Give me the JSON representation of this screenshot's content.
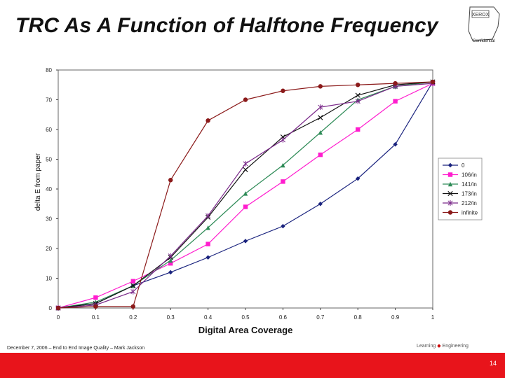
{
  "slide": {
    "title": "TRC As A Function of Halftone Frequency",
    "logo_label": "Confidential",
    "logo_mark": "XEROX",
    "footer_text": "December 7, 2006 – End to End Image Quality – Mark Jackson",
    "footer_logo_left": "Learning",
    "footer_logo_right": "Engineering",
    "page_number": "14",
    "accent_color": "#e8141b"
  },
  "chart_data": {
    "type": "line",
    "title": "",
    "xlabel": "Digital Area Coverage",
    "ylabel": "delta E from paper",
    "xlim": [
      0,
      1
    ],
    "ylim": [
      0,
      80
    ],
    "xticks": [
      "0",
      "0.1",
      "0.2",
      "0.3",
      "0.4",
      "0.5",
      "0.6",
      "0.7",
      "0.8",
      "0.9",
      "1"
    ],
    "yticks": [
      "0",
      "10",
      "20",
      "30",
      "40",
      "50",
      "60",
      "70",
      "80"
    ],
    "legend_position": "right",
    "series": [
      {
        "name": "0",
        "color": "#1a237e",
        "marker": "diamond",
        "x": [
          0,
          0.1,
          0.2,
          0.3,
          0.4,
          0.5,
          0.6,
          0.7,
          0.8,
          0.9,
          1
        ],
        "y": [
          0,
          1.5,
          7.5,
          12,
          17,
          22.5,
          27.5,
          35,
          43.5,
          55,
          76
        ]
      },
      {
        "name": "106/in",
        "color": "#ff1dce",
        "marker": "square",
        "x": [
          0,
          0.1,
          0.2,
          0.3,
          0.4,
          0.5,
          0.6,
          0.7,
          0.8,
          0.9,
          1
        ],
        "y": [
          0,
          3.5,
          9,
          15,
          21.5,
          34,
          42.5,
          51.5,
          60,
          69.5,
          75.5
        ]
      },
      {
        "name": "141/in",
        "color": "#2e8b57",
        "marker": "triangle",
        "x": [
          0,
          0.1,
          0.2,
          0.3,
          0.4,
          0.5,
          0.6,
          0.7,
          0.8,
          0.9,
          1
        ],
        "y": [
          0,
          2,
          7.5,
          16,
          27,
          38.5,
          48,
          59,
          70,
          74.5,
          76
        ]
      },
      {
        "name": "173/in",
        "color": "#111111",
        "marker": "x",
        "x": [
          0,
          0.1,
          0.2,
          0.3,
          0.4,
          0.5,
          0.6,
          0.7,
          0.8,
          0.9,
          1
        ],
        "y": [
          0,
          1.5,
          7.5,
          17,
          30.5,
          46.5,
          57.5,
          64,
          71.5,
          75,
          76
        ]
      },
      {
        "name": "212/in",
        "color": "#7b2a8a",
        "marker": "star",
        "x": [
          0,
          0.1,
          0.2,
          0.3,
          0.4,
          0.5,
          0.6,
          0.7,
          0.8,
          0.9,
          1
        ],
        "y": [
          0,
          1,
          5.5,
          17.5,
          31,
          48.5,
          56.5,
          67.5,
          69.5,
          74.5,
          75.5
        ]
      },
      {
        "name": "infinite",
        "color": "#8b1a1a",
        "marker": "circle",
        "x": [
          0,
          0.1,
          0.2,
          0.3,
          0.4,
          0.5,
          0.6,
          0.7,
          0.8,
          0.9,
          1
        ],
        "y": [
          0,
          0.5,
          0.5,
          43,
          63,
          70,
          73,
          74.5,
          75,
          75.5,
          76
        ]
      }
    ]
  }
}
